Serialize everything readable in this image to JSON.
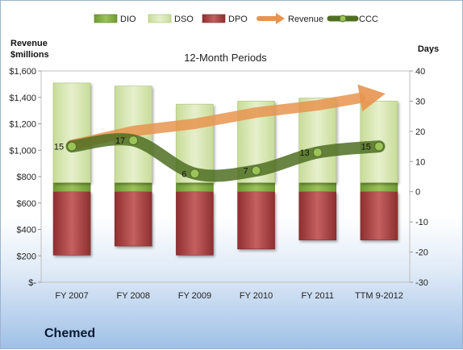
{
  "company": "Chemed",
  "colors": {
    "dio": "#8fb24a",
    "dso": "#d9e8b5",
    "dpo": "#b04a4a",
    "revenue": "#f0a060",
    "ccc": "#5a7a2a"
  },
  "chart_data": {
    "type": "bar",
    "title": "12-Month Periods",
    "ylabel_left": "Revenue\n$millions",
    "ylabel_right": "Days",
    "categories": [
      "FY 2007",
      "FY 2008",
      "FY 2009",
      "FY 2010",
      "FY 2011",
      "TTM 9-2012"
    ],
    "left_axis": {
      "min": 0,
      "max": 1600,
      "step": 200,
      "tick_labels": [
        "$-",
        "$200",
        "$400",
        "$600",
        "$800",
        "$1,000",
        "$1,200",
        "$1,400",
        "$1,600"
      ]
    },
    "right_axis": {
      "min": -30,
      "max": 40,
      "step": 10,
      "tick_labels": [
        "-30",
        "-20",
        "-10",
        "0",
        "10",
        "20",
        "30",
        "40"
      ]
    },
    "legend": {
      "position": "top",
      "entries": [
        "DIO",
        "DSO",
        "DPO",
        "Revenue",
        "CCC"
      ]
    },
    "series": [
      {
        "name": "DIO",
        "axis": "right",
        "kind": "stacked-bar",
        "values": [
          3,
          3,
          3,
          3,
          3,
          3
        ]
      },
      {
        "name": "DSO",
        "axis": "right",
        "kind": "stacked-bar",
        "values": [
          33,
          32,
          26,
          27,
          28,
          27
        ]
      },
      {
        "name": "DPO",
        "axis": "right",
        "kind": "negative-bar",
        "values": [
          -21,
          -18,
          -21,
          -19,
          -16,
          -16
        ]
      },
      {
        "name": "Revenue",
        "axis": "left",
        "kind": "arrow",
        "values": [
          1040,
          1145,
          1200,
          1285,
          1340,
          1420
        ]
      },
      {
        "name": "CCC",
        "axis": "right",
        "kind": "line",
        "values": [
          15,
          17,
          6,
          7,
          13,
          15
        ]
      }
    ],
    "data_labels": [
      "15",
      "17",
      "6",
      "7",
      "13",
      "15"
    ]
  }
}
